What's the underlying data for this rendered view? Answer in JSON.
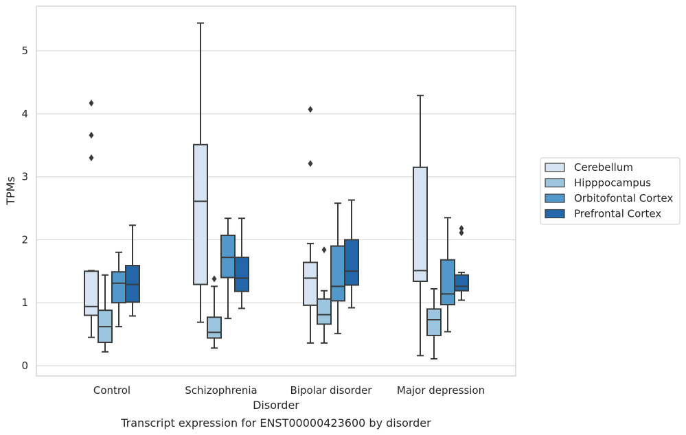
{
  "chart_data": {
    "type": "box",
    "title": "Transcript expression for ENST00000423600 by disorder",
    "xlabel": "Disorder",
    "ylabel": "TPMs",
    "ylim": [
      -0.15,
      5.6
    ],
    "yticks": [
      "0",
      "1",
      "2",
      "3",
      "4",
      "5"
    ],
    "grid": "horizontal",
    "legend_position": "right",
    "categories": [
      "Control",
      "Schizophrenia",
      "Bipolar disorder",
      "Major depression"
    ],
    "series": [
      {
        "name": "Cerebellum",
        "color": "#d6e4f2",
        "boxes": [
          {
            "whislo": 0.45,
            "q1": 0.8,
            "med": 0.94,
            "q3": 1.5,
            "whishi": 1.51,
            "fliers": [
              3.3,
              3.66,
              4.17
            ]
          },
          {
            "whislo": 0.69,
            "q1": 1.29,
            "med": 2.61,
            "q3": 3.51,
            "whishi": 5.44,
            "fliers": []
          },
          {
            "whislo": 0.36,
            "q1": 0.96,
            "med": 1.39,
            "q3": 1.64,
            "whishi": 1.94,
            "fliers": [
              3.21,
              4.07
            ]
          },
          {
            "whislo": 0.16,
            "q1": 1.34,
            "med": 1.51,
            "q3": 3.15,
            "whishi": 4.29,
            "fliers": []
          }
        ]
      },
      {
        "name": "Hipppocampus",
        "color": "#9ec5de",
        "boxes": [
          {
            "whislo": 0.22,
            "q1": 0.37,
            "med": 0.62,
            "q3": 0.88,
            "whishi": 1.44,
            "fliers": []
          },
          {
            "whislo": 0.28,
            "q1": 0.44,
            "med": 0.53,
            "q3": 0.77,
            "whishi": 1.26,
            "fliers": [
              1.38
            ]
          },
          {
            "whislo": 0.36,
            "q1": 0.66,
            "med": 0.81,
            "q3": 1.06,
            "whishi": 1.19,
            "fliers": [
              1.84
            ]
          },
          {
            "whislo": 0.11,
            "q1": 0.48,
            "med": 0.73,
            "q3": 0.9,
            "whishi": 1.22,
            "fliers": []
          }
        ]
      },
      {
        "name": "Orbitofontal Cortex",
        "color": "#5298c8",
        "boxes": [
          {
            "whislo": 0.62,
            "q1": 1.0,
            "med": 1.31,
            "q3": 1.49,
            "whishi": 1.8,
            "fliers": []
          },
          {
            "whislo": 0.75,
            "q1": 1.4,
            "med": 1.72,
            "q3": 2.07,
            "whishi": 2.34,
            "fliers": []
          },
          {
            "whislo": 0.51,
            "q1": 1.03,
            "med": 1.26,
            "q3": 1.9,
            "whishi": 2.58,
            "fliers": []
          },
          {
            "whislo": 0.54,
            "q1": 0.97,
            "med": 1.14,
            "q3": 1.68,
            "whishi": 2.35,
            "fliers": []
          }
        ]
      },
      {
        "name": "Prefrontal Cortex",
        "color": "#2467a9",
        "boxes": [
          {
            "whislo": 0.79,
            "q1": 1.01,
            "med": 1.29,
            "q3": 1.59,
            "whishi": 2.23,
            "fliers": []
          },
          {
            "whislo": 0.91,
            "q1": 1.18,
            "med": 1.39,
            "q3": 1.72,
            "whishi": 2.34,
            "fliers": []
          },
          {
            "whislo": 0.92,
            "q1": 1.28,
            "med": 1.5,
            "q3": 2.0,
            "whishi": 2.63,
            "fliers": []
          },
          {
            "whislo": 1.04,
            "q1": 1.19,
            "med": 1.26,
            "q3": 1.44,
            "whishi": 1.48,
            "fliers": [
              2.11,
              2.18
            ]
          }
        ]
      }
    ]
  }
}
